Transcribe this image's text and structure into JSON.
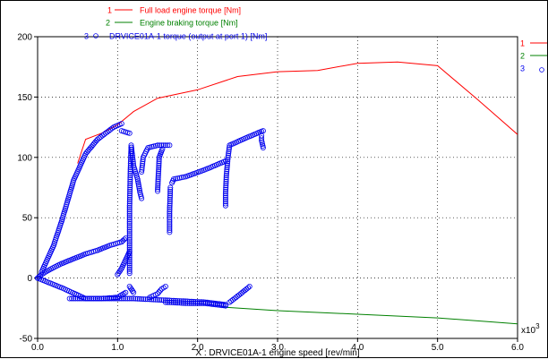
{
  "chart_data": {
    "type": "line",
    "xlabel": "X : DRVICE01A-1 engine speed [rev/min]",
    "ylabel": "",
    "x_multiplier_label": "x10",
    "x_multiplier_exp": "3",
    "xlim": [
      0,
      6.0
    ],
    "ylim": [
      -50,
      200
    ],
    "x_ticks": [
      0.0,
      1.0,
      2.0,
      3.0,
      4.0,
      5.0,
      6.0
    ],
    "x_tick_labels": [
      "0.0",
      "1.0",
      "2.0",
      "3.0",
      "4.0",
      "5.0",
      "6.0"
    ],
    "y_ticks": [
      -50,
      0,
      50,
      100,
      150,
      200
    ],
    "y_tick_labels": [
      "-50",
      "0",
      "50",
      "100",
      "150",
      "200"
    ],
    "grid": true,
    "legend_position": "top",
    "series": [
      {
        "index": "1",
        "name": "Full load engine torque [Nm]",
        "color": "#ff0000",
        "style": "line",
        "points": [
          [
            0.5,
            95
          ],
          [
            0.6,
            115
          ],
          [
            0.8,
            120
          ],
          [
            1.0,
            127
          ],
          [
            1.2,
            138
          ],
          [
            1.5,
            149
          ],
          [
            2.0,
            156
          ],
          [
            2.5,
            167
          ],
          [
            3.0,
            171
          ],
          [
            3.5,
            172
          ],
          [
            4.0,
            178
          ],
          [
            4.5,
            179
          ],
          [
            5.0,
            176
          ],
          [
            5.5,
            148
          ],
          [
            6.0,
            119
          ]
        ]
      },
      {
        "index": "2",
        "name": "Engine braking torque [Nm]",
        "color": "#008000",
        "style": "line",
        "points": [
          [
            2.3,
            -24
          ],
          [
            3.0,
            -27
          ],
          [
            4.0,
            -30
          ],
          [
            5.0,
            -33
          ],
          [
            6.0,
            -38
          ]
        ]
      },
      {
        "index": "3",
        "name": "DRVICE01A-1 torque (output at port 1) [Nm]",
        "color": "#0000ee",
        "style": "markers",
        "segments": [
          [
            [
              0.0,
              0
            ],
            [
              0.3,
              -8
            ],
            [
              0.6,
              -17
            ],
            [
              0.9,
              -17
            ],
            [
              1.2,
              -17
            ],
            [
              1.5,
              -18
            ],
            [
              1.8,
              -19
            ],
            [
              2.1,
              -20
            ],
            [
              2.35,
              -22
            ]
          ],
          [
            [
              0.05,
              5
            ],
            [
              0.2,
              27
            ],
            [
              0.3,
              47
            ],
            [
              0.45,
              81
            ],
            [
              0.6,
              103
            ],
            [
              0.75,
              115
            ],
            [
              0.85,
              120
            ],
            [
              0.95,
              125
            ],
            [
              1.05,
              128
            ]
          ],
          [
            [
              1.05,
              122
            ],
            [
              1.1,
              121
            ],
            [
              1.15,
              120
            ]
          ],
          [
            [
              1.15,
              4
            ],
            [
              1.15,
              30
            ],
            [
              1.15,
              60
            ],
            [
              1.16,
              90
            ],
            [
              1.17,
              110
            ],
            [
              1.2,
              93
            ],
            [
              1.25,
              82
            ],
            [
              1.28,
              71
            ],
            [
              1.3,
              66
            ]
          ],
          [
            [
              1.3,
              88
            ],
            [
              1.32,
              100
            ],
            [
              1.38,
              108
            ],
            [
              1.5,
              110
            ],
            [
              1.65,
              110
            ]
          ],
          [
            [
              1.5,
              72
            ],
            [
              1.52,
              100
            ],
            [
              1.56,
              107
            ]
          ],
          [
            [
              1.65,
              38
            ],
            [
              1.65,
              55
            ],
            [
              1.66,
              75
            ]
          ],
          [
            [
              1.68,
              79
            ],
            [
              1.7,
              82
            ],
            [
              1.85,
              84
            ],
            [
              2.1,
              90
            ],
            [
              2.35,
              97
            ]
          ],
          [
            [
              2.35,
              60
            ],
            [
              2.35,
              70
            ],
            [
              2.36,
              85
            ],
            [
              2.38,
              100
            ],
            [
              2.4,
              110
            ],
            [
              2.6,
              116
            ],
            [
              2.78,
              121
            ],
            [
              2.82,
              122
            ]
          ],
          [
            [
              2.82,
              108
            ],
            [
              2.8,
              114
            ],
            [
              2.8,
              118
            ]
          ],
          [
            [
              0.0,
              0
            ],
            [
              0.05,
              3
            ],
            [
              0.15,
              7
            ],
            [
              0.3,
              12
            ],
            [
              0.45,
              16
            ],
            [
              0.6,
              20
            ],
            [
              0.75,
              23
            ],
            [
              0.9,
              27
            ],
            [
              1.05,
              30
            ],
            [
              1.1,
              33
            ]
          ],
          [
            [
              1.0,
              3
            ],
            [
              1.05,
              8
            ],
            [
              1.1,
              15
            ],
            [
              1.15,
              22
            ]
          ],
          [
            [
              0.4,
              -17
            ],
            [
              0.8,
              -17
            ],
            [
              1.0,
              -16
            ],
            [
              1.1,
              -12
            ]
          ],
          [
            [
              1.15,
              -7
            ],
            [
              1.2,
              -12
            ]
          ],
          [
            [
              1.4,
              -16
            ],
            [
              1.5,
              -13
            ],
            [
              1.55,
              -9
            ],
            [
              1.6,
              -7
            ]
          ],
          [
            [
              1.6,
              -20
            ],
            [
              1.9,
              -21
            ],
            [
              2.1,
              -21
            ],
            [
              2.35,
              -23
            ]
          ],
          [
            [
              2.4,
              -20
            ],
            [
              2.5,
              -15
            ],
            [
              2.65,
              -7
            ]
          ]
        ]
      }
    ]
  }
}
